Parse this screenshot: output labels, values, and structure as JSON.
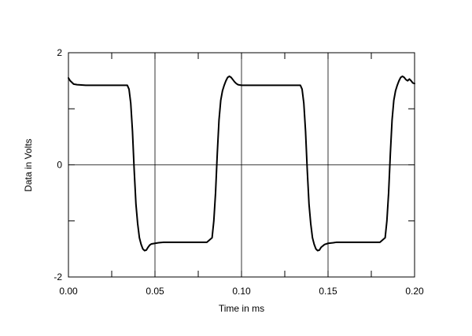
{
  "chart_data": {
    "type": "line",
    "title": "",
    "xlabel": "Time in ms",
    "ylabel": "Data in Volts",
    "xlim": [
      0,
      0.2
    ],
    "ylim": [
      -2,
      2
    ],
    "x_ticks": [
      0,
      0.05,
      0.1,
      0.15,
      0.2
    ],
    "x_tick_labels": [
      "0.00",
      "0.05",
      "0.10",
      "0.15",
      "0.20"
    ],
    "y_ticks": [
      -2,
      0,
      2
    ],
    "y_tick_labels": [
      "-2",
      "0",
      "2"
    ],
    "grid": true,
    "line_color": "#000000",
    "series": [
      {
        "x": [
          0,
          0.001,
          0.003,
          0.005,
          0.01,
          0.02,
          0.03,
          0.034,
          0.035,
          0.036,
          0.037,
          0.038,
          0.039,
          0.04,
          0.041,
          0.042,
          0.043,
          0.044,
          0.045,
          0.046,
          0.047,
          0.048,
          0.05,
          0.052,
          0.055,
          0.06,
          0.07,
          0.08,
          0.083,
          0.084,
          0.085,
          0.086,
          0.087,
          0.088,
          0.089,
          0.09,
          0.091,
          0.092,
          0.093,
          0.094,
          0.095,
          0.096,
          0.097,
          0.098,
          0.1,
          0.102,
          0.105,
          0.11,
          0.12,
          0.13,
          0.134,
          0.135,
          0.136,
          0.137,
          0.138,
          0.139,
          0.14,
          0.141,
          0.142,
          0.143,
          0.144,
          0.145,
          0.146,
          0.148,
          0.15,
          0.153,
          0.155,
          0.16,
          0.17,
          0.18,
          0.183,
          0.184,
          0.185,
          0.186,
          0.187,
          0.188,
          0.189,
          0.19,
          0.191,
          0.192,
          0.193,
          0.194,
          0.195,
          0.196,
          0.197,
          0.198,
          0.199,
          0.2
        ],
        "y": [
          1.55,
          1.5,
          1.44,
          1.43,
          1.42,
          1.42,
          1.42,
          1.42,
          1.35,
          1.1,
          0.6,
          -0.1,
          -0.7,
          -1.05,
          -1.3,
          -1.42,
          -1.5,
          -1.53,
          -1.52,
          -1.47,
          -1.43,
          -1.41,
          -1.4,
          -1.39,
          -1.38,
          -1.38,
          -1.38,
          -1.38,
          -1.3,
          -1.0,
          -0.5,
          0.2,
          0.8,
          1.15,
          1.32,
          1.42,
          1.5,
          1.56,
          1.58,
          1.56,
          1.52,
          1.48,
          1.45,
          1.43,
          1.42,
          1.42,
          1.42,
          1.42,
          1.42,
          1.42,
          1.42,
          1.35,
          1.1,
          0.6,
          -0.1,
          -0.7,
          -1.05,
          -1.3,
          -1.42,
          -1.5,
          -1.53,
          -1.52,
          -1.47,
          -1.42,
          -1.4,
          -1.39,
          -1.38,
          -1.38,
          -1.38,
          -1.38,
          -1.3,
          -1.0,
          -0.5,
          0.2,
          0.8,
          1.15,
          1.32,
          1.42,
          1.5,
          1.56,
          1.58,
          1.56,
          1.52,
          1.5,
          1.53,
          1.5,
          1.46,
          1.45
        ]
      }
    ]
  }
}
